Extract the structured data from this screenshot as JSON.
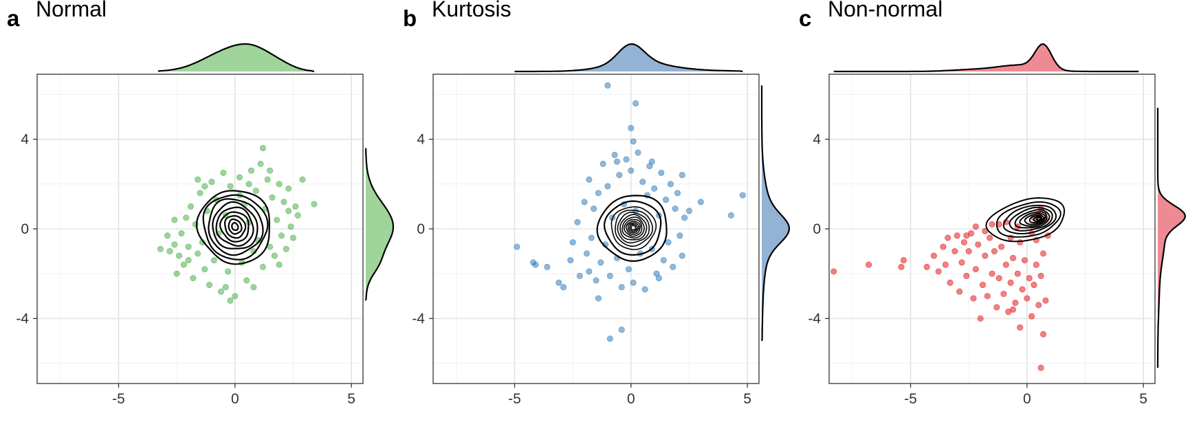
{
  "figure": {
    "panels": [
      {
        "letter": "a",
        "title": "Normal"
      },
      {
        "letter": "b",
        "title": "Kurtosis"
      },
      {
        "letter": "c",
        "title": "Non-normal"
      }
    ]
  },
  "chart_data": [
    {
      "type": "scatter",
      "panel": "a",
      "title": "Normal",
      "xlabel": "",
      "ylabel": "",
      "xlim": [
        -8.5,
        5.5
      ],
      "ylim": [
        -6.9,
        6.9
      ],
      "x_ticks": [
        -5,
        0,
        5
      ],
      "y_ticks": [
        -4,
        0,
        4
      ],
      "grid": true,
      "contours": true,
      "marginal_densities": [
        "top",
        "right"
      ],
      "point_color": "#4daf4a",
      "density_fill": "#9fd49a",
      "points": [
        [
          -3.2,
          -0.9
        ],
        [
          -2.8,
          -1.0
        ],
        [
          -2.9,
          -0.3
        ],
        [
          -2.6,
          -0.7
        ],
        [
          -2.5,
          -2.0
        ],
        [
          -2.4,
          -1.2
        ],
        [
          -2.3,
          -0.2
        ],
        [
          -2.2,
          -1.6
        ],
        [
          -2.1,
          0.5
        ],
        [
          -2.0,
          -0.8
        ],
        [
          -1.9,
          1.0
        ],
        [
          -1.8,
          -2.2
        ],
        [
          -1.7,
          0.2
        ],
        [
          -1.6,
          -1.1
        ],
        [
          -1.5,
          1.6
        ],
        [
          -1.4,
          -0.6
        ],
        [
          -1.3,
          -1.8
        ],
        [
          -1.2,
          0.8
        ],
        [
          -1.1,
          -2.5
        ],
        [
          -1.0,
          2.1
        ],
        [
          -0.9,
          -1.4
        ],
        [
          -0.8,
          1.3
        ],
        [
          -0.7,
          -0.2
        ],
        [
          -0.6,
          -2.8
        ],
        [
          -0.5,
          2.5
        ],
        [
          -0.4,
          0.6
        ],
        [
          -0.3,
          -1.9
        ],
        [
          -0.2,
          1.9
        ],
        [
          0.0,
          -3.0
        ],
        [
          0.2,
          2.3
        ],
        [
          0.3,
          -1.5
        ],
        [
          0.4,
          1.1
        ],
        [
          0.5,
          -2.3
        ],
        [
          0.6,
          0.3
        ],
        [
          0.7,
          2.6
        ],
        [
          0.8,
          -1.0
        ],
        [
          0.9,
          1.7
        ],
        [
          1.0,
          -0.5
        ],
        [
          1.1,
          2.9
        ],
        [
          1.2,
          -1.7
        ],
        [
          1.3,
          0.9
        ],
        [
          1.4,
          2.2
        ],
        [
          1.5,
          -0.8
        ],
        [
          1.6,
          1.4
        ],
        [
          1.7,
          -1.2
        ],
        [
          1.8,
          0.4
        ],
        [
          1.9,
          2.0
        ],
        [
          2.0,
          -0.3
        ],
        [
          2.1,
          1.2
        ],
        [
          2.2,
          -0.9
        ],
        [
          2.3,
          1.8
        ],
        [
          2.4,
          0.1
        ],
        [
          2.5,
          -0.4
        ],
        [
          2.6,
          1.0
        ],
        [
          2.7,
          0.6
        ],
        [
          2.9,
          2.2
        ],
        [
          3.4,
          1.1
        ],
        [
          1.2,
          3.6
        ],
        [
          0.6,
          2.0
        ],
        [
          -1.6,
          2.2
        ],
        [
          -0.4,
          -2.6
        ],
        [
          0.8,
          -2.6
        ],
        [
          -2.0,
          -1.4
        ],
        [
          1.9,
          -1.6
        ],
        [
          -2.6,
          0.4
        ],
        [
          2.3,
          0.8
        ],
        [
          -0.2,
          -3.2
        ],
        [
          1.5,
          2.6
        ],
        [
          -1.3,
          1.9
        ],
        [
          0.2,
          1.5
        ]
      ]
    },
    {
      "type": "scatter",
      "panel": "b",
      "title": "Kurtosis",
      "xlabel": "",
      "ylabel": "",
      "xlim": [
        -8.5,
        5.5
      ],
      "ylim": [
        -6.9,
        6.9
      ],
      "x_ticks": [
        -5,
        0,
        5
      ],
      "y_ticks": [
        -4,
        0,
        4
      ],
      "grid": true,
      "contours": true,
      "marginal_densities": [
        "top",
        "right"
      ],
      "point_color": "#377eb8",
      "density_fill": "#93b3d4",
      "points": [
        [
          -1.0,
          6.4
        ],
        [
          0.2,
          5.6
        ],
        [
          0.0,
          4.5
        ],
        [
          0.1,
          3.9
        ],
        [
          -4.9,
          -0.8
        ],
        [
          -4.2,
          -1.5
        ],
        [
          -4.1,
          -1.6
        ],
        [
          -3.6,
          -1.7
        ],
        [
          -3.1,
          -2.4
        ],
        [
          -2.9,
          -2.6
        ],
        [
          -1.4,
          -3.1
        ],
        [
          -0.9,
          -4.9
        ],
        [
          -0.4,
          -4.5
        ],
        [
          4.8,
          1.5
        ],
        [
          4.3,
          0.6
        ],
        [
          3.0,
          1.2
        ],
        [
          2.5,
          0.8
        ],
        [
          2.2,
          2.4
        ],
        [
          -2.6,
          -1.4
        ],
        [
          -2.5,
          -0.6
        ],
        [
          -2.3,
          0.3
        ],
        [
          -2.2,
          -2.1
        ],
        [
          -2.0,
          1.2
        ],
        [
          -1.9,
          -1.1
        ],
        [
          -1.8,
          2.2
        ],
        [
          -1.7,
          -0.4
        ],
        [
          -1.6,
          0.9
        ],
        [
          -1.5,
          -2.3
        ],
        [
          -1.4,
          1.6
        ],
        [
          -1.3,
          -1.5
        ],
        [
          -1.2,
          2.9
        ],
        [
          -1.1,
          -0.7
        ],
        [
          -1.0,
          1.9
        ],
        [
          -0.9,
          -2.1
        ],
        [
          -0.8,
          0.5
        ],
        [
          -0.7,
          3.3
        ],
        [
          -0.6,
          -1.3
        ],
        [
          -0.5,
          2.4
        ],
        [
          -0.4,
          -2.6
        ],
        [
          -0.3,
          1.1
        ],
        [
          -0.2,
          3.1
        ],
        [
          -0.1,
          -1.8
        ],
        [
          0.0,
          2.6
        ],
        [
          0.1,
          -2.4
        ],
        [
          0.2,
          0.8
        ],
        [
          0.3,
          3.4
        ],
        [
          0.4,
          -1.1
        ],
        [
          0.5,
          2.1
        ],
        [
          0.6,
          -2.7
        ],
        [
          0.7,
          1.5
        ],
        [
          0.8,
          2.8
        ],
        [
          0.9,
          -0.9
        ],
        [
          1.0,
          1.8
        ],
        [
          1.1,
          -2.0
        ],
        [
          1.2,
          0.6
        ],
        [
          1.3,
          2.5
        ],
        [
          1.4,
          -1.4
        ],
        [
          1.5,
          1.3
        ],
        [
          1.6,
          -0.6
        ],
        [
          1.7,
          2.0
        ],
        [
          1.8,
          -1.7
        ],
        [
          1.9,
          0.9
        ],
        [
          2.0,
          1.6
        ],
        [
          2.1,
          -0.3
        ],
        [
          2.2,
          -1.2
        ],
        [
          2.3,
          0.5
        ],
        [
          -1.8,
          -1.9
        ],
        [
          1.2,
          -2.2
        ],
        [
          -0.6,
          3.0
        ],
        [
          0.9,
          3.0
        ]
      ]
    },
    {
      "type": "scatter",
      "panel": "c",
      "title": "Non-normal",
      "xlabel": "",
      "ylabel": "",
      "xlim": [
        -8.5,
        5.5
      ],
      "ylim": [
        -6.9,
        6.9
      ],
      "x_ticks": [
        -5,
        0,
        5
      ],
      "y_ticks": [
        -4,
        0,
        4
      ],
      "grid": true,
      "contours": true,
      "marginal_densities": [
        "top",
        "right"
      ],
      "point_color": "#e41a1c",
      "density_fill": "#ee8a93",
      "points": [
        [
          -8.3,
          -1.9
        ],
        [
          -6.8,
          -1.6
        ],
        [
          -5.4,
          -1.7
        ],
        [
          -5.3,
          -1.4
        ],
        [
          -4.3,
          -1.7
        ],
        [
          -4.0,
          -1.2
        ],
        [
          -3.8,
          -1.9
        ],
        [
          -3.6,
          -0.8
        ],
        [
          -3.5,
          -1.6
        ],
        [
          -3.4,
          -0.4
        ],
        [
          -3.3,
          -2.4
        ],
        [
          -3.1,
          -1.0
        ],
        [
          -3.0,
          -0.3
        ],
        [
          -2.9,
          -2.8
        ],
        [
          -2.8,
          -1.5
        ],
        [
          -2.7,
          -0.6
        ],
        [
          -2.6,
          -2.1
        ],
        [
          -2.5,
          -1.0
        ],
        [
          -2.4,
          -0.2
        ],
        [
          -2.3,
          -3.1
        ],
        [
          -2.2,
          -1.8
        ],
        [
          -2.1,
          -0.7
        ],
        [
          -2.0,
          -4.0
        ],
        [
          -1.9,
          -2.5
        ],
        [
          -1.8,
          -1.2
        ],
        [
          -1.7,
          -3.0
        ],
        [
          -1.6,
          -0.4
        ],
        [
          -1.5,
          -2.0
        ],
        [
          -1.4,
          -1.0
        ],
        [
          -1.3,
          -3.5
        ],
        [
          -1.2,
          -2.2
        ],
        [
          -1.1,
          -0.8
        ],
        [
          -1.0,
          -2.9
        ],
        [
          -0.9,
          -1.6
        ],
        [
          -0.8,
          -3.7
        ],
        [
          -0.7,
          -2.4
        ],
        [
          -0.6,
          -1.3
        ],
        [
          -0.5,
          -3.3
        ],
        [
          -0.4,
          -2.0
        ],
        [
          -0.3,
          -4.4
        ],
        [
          -0.2,
          -2.7
        ],
        [
          -0.1,
          -1.4
        ],
        [
          0.0,
          -3.1
        ],
        [
          0.1,
          -2.2
        ],
        [
          0.2,
          -3.9
        ],
        [
          0.3,
          -2.5
        ],
        [
          0.4,
          -1.6
        ],
        [
          0.5,
          -3.4
        ],
        [
          0.6,
          -2.1
        ],
        [
          0.7,
          -4.7
        ],
        [
          0.6,
          -6.2
        ],
        [
          -0.6,
          -3.6
        ],
        [
          -1.8,
          -0.1
        ],
        [
          -1.2,
          0.2
        ],
        [
          -0.4,
          0.1
        ],
        [
          0.2,
          -0.2
        ],
        [
          0.8,
          0.4
        ],
        [
          -2.2,
          0.1
        ],
        [
          -0.9,
          0.3
        ],
        [
          0.5,
          0.6
        ],
        [
          -1.5,
          0.2
        ],
        [
          0.9,
          -0.3
        ],
        [
          0.3,
          0.5
        ],
        [
          -0.7,
          -0.4
        ],
        [
          0.8,
          -3.2
        ],
        [
          0.7,
          -1.1
        ],
        [
          -0.3,
          -0.6
        ],
        [
          -2.6,
          -0.3
        ],
        [
          0.4,
          -0.5
        ],
        [
          0.6,
          0.9
        ]
      ]
    }
  ]
}
